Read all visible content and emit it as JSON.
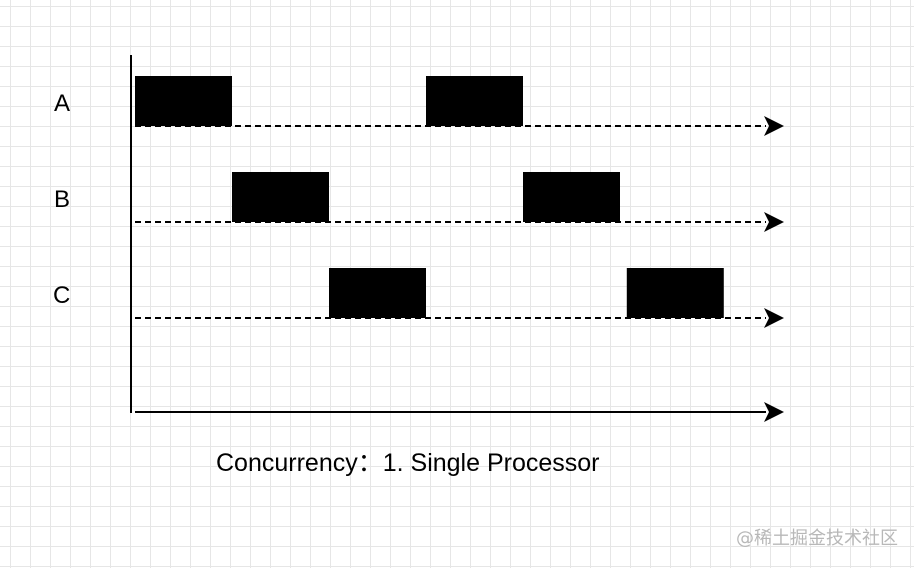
{
  "diagram": {
    "title": "Concurrency：1. Single Processor",
    "rows": [
      {
        "label": "A",
        "blocks": [
          [
            0.0,
            1.0
          ],
          [
            3.0,
            4.0
          ]
        ]
      },
      {
        "label": "B",
        "blocks": [
          [
            1.0,
            2.0
          ],
          [
            4.0,
            5.0
          ]
        ]
      },
      {
        "label": "C",
        "blocks": [
          [
            2.0,
            3.0
          ],
          [
            5.07,
            6.07
          ]
        ]
      }
    ]
  },
  "watermark": "@稀土掘金技术社区",
  "colors": {
    "block": "#000000",
    "line": "#000000",
    "grid": "#e6e6e6",
    "watermark": "#b8b8b8"
  }
}
